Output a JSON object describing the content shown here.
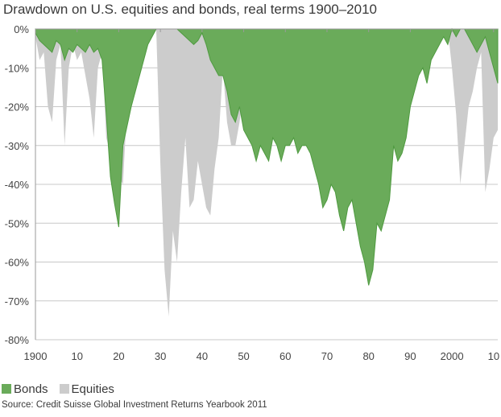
{
  "title": "Drawdown on U.S. equities and bonds, real terms 1900–2010",
  "source": "Source: Credit Suisse Global Investment Returns Yearbook 2011",
  "chart_data": {
    "type": "area",
    "title": "Drawdown on U.S. equities and bonds, real terms 1900–2010",
    "xlabel": "",
    "ylabel": "",
    "xlim": [
      1900,
      2011
    ],
    "ylim": [
      -80,
      0
    ],
    "x_ticks": [
      1900,
      1910,
      1920,
      1930,
      1940,
      1950,
      1960,
      1970,
      1980,
      1990,
      2000,
      2010
    ],
    "x_tick_labels": [
      "1900",
      "10",
      "20",
      "30",
      "40",
      "50",
      "60",
      "70",
      "80",
      "90",
      "2000",
      "10"
    ],
    "y_ticks": [
      0,
      -10,
      -20,
      -30,
      -40,
      -50,
      -60,
      -70,
      -80
    ],
    "y_tick_labels": [
      "0%",
      "-10%",
      "-20%",
      "-30%",
      "-40%",
      "-50%",
      "-60%",
      "-70%",
      "-80%"
    ],
    "grid": "horizontal",
    "legend": "bottom-left",
    "series": [
      {
        "name": "Equities",
        "color": "#cccccc",
        "x": [
          1900,
          1901,
          1902,
          1903,
          1904,
          1905,
          1906,
          1907,
          1908,
          1909,
          1910,
          1911,
          1912,
          1913,
          1914,
          1915,
          1916,
          1917,
          1918,
          1919,
          1920,
          1921,
          1922,
          1923,
          1924,
          1925,
          1926,
          1927,
          1928,
          1929,
          1930,
          1931,
          1932,
          1933,
          1934,
          1935,
          1936,
          1937,
          1938,
          1939,
          1940,
          1941,
          1942,
          1943,
          1944,
          1945,
          1946,
          1947,
          1948,
          1949,
          1950,
          1951,
          1952,
          1953,
          1954,
          1955,
          1956,
          1957,
          1958,
          1959,
          1960,
          1961,
          1962,
          1963,
          1964,
          1965,
          1966,
          1967,
          1968,
          1969,
          1970,
          1971,
          1972,
          1973,
          1974,
          1975,
          1976,
          1977,
          1978,
          1979,
          1980,
          1981,
          1982,
          1983,
          1984,
          1985,
          1986,
          1987,
          1988,
          1989,
          1990,
          1991,
          1992,
          1993,
          1994,
          1995,
          1996,
          1997,
          1998,
          1999,
          2000,
          2001,
          2002,
          2003,
          2004,
          2005,
          2006,
          2007,
          2008,
          2009,
          2010,
          2011
        ],
        "values": [
          -2,
          -8,
          -6,
          -20,
          -24,
          -8,
          -4,
          -30,
          -10,
          -4,
          -8,
          -6,
          -12,
          -18,
          -28,
          -10,
          -6,
          -28,
          -32,
          -22,
          -38,
          -40,
          -20,
          -16,
          -8,
          0,
          -4,
          0,
          0,
          0,
          -35,
          -62,
          -74,
          -52,
          -60,
          -42,
          -28,
          -46,
          -44,
          -34,
          -40,
          -46,
          -48,
          -36,
          -28,
          -10,
          -24,
          -30,
          -30,
          -24,
          -16,
          -8,
          -4,
          -8,
          0,
          0,
          -2,
          -10,
          0,
          0,
          -4,
          0,
          -14,
          -6,
          0,
          0,
          -14,
          -8,
          -4,
          -16,
          -24,
          -18,
          -12,
          -30,
          -44,
          -38,
          -32,
          -40,
          -42,
          -38,
          -34,
          -38,
          -32,
          -18,
          -20,
          -10,
          0,
          -10,
          -6,
          0,
          -8,
          0,
          0,
          0,
          -2,
          0,
          0,
          0,
          0,
          0,
          -10,
          -22,
          -40,
          -30,
          -20,
          -16,
          -10,
          -6,
          -42,
          -36,
          -28,
          -26
        ]
      },
      {
        "name": "Bonds",
        "color": "#6aab5a",
        "x": [
          1900,
          1901,
          1902,
          1903,
          1904,
          1905,
          1906,
          1907,
          1908,
          1909,
          1910,
          1911,
          1912,
          1913,
          1914,
          1915,
          1916,
          1917,
          1918,
          1919,
          1920,
          1921,
          1922,
          1923,
          1924,
          1925,
          1926,
          1927,
          1928,
          1929,
          1930,
          1931,
          1932,
          1933,
          1934,
          1935,
          1936,
          1937,
          1938,
          1939,
          1940,
          1941,
          1942,
          1943,
          1944,
          1945,
          1946,
          1947,
          1948,
          1949,
          1950,
          1951,
          1952,
          1953,
          1954,
          1955,
          1956,
          1957,
          1958,
          1959,
          1960,
          1961,
          1962,
          1963,
          1964,
          1965,
          1966,
          1967,
          1968,
          1969,
          1970,
          1971,
          1972,
          1973,
          1974,
          1975,
          1976,
          1977,
          1978,
          1979,
          1980,
          1981,
          1982,
          1983,
          1984,
          1985,
          1986,
          1987,
          1988,
          1989,
          1990,
          1991,
          1992,
          1993,
          1994,
          1995,
          1996,
          1997,
          1998,
          1999,
          2000,
          2001,
          2002,
          2003,
          2004,
          2005,
          2006,
          2007,
          2008,
          2009,
          2010,
          2011
        ],
        "values": [
          -1,
          -3,
          -4,
          -5,
          -6,
          -3,
          -4,
          -8,
          -5,
          -6,
          -4,
          -5,
          -6,
          -4,
          -6,
          -5,
          -8,
          -22,
          -38,
          -45,
          -51,
          -30,
          -25,
          -20,
          -16,
          -12,
          -8,
          -4,
          -2,
          0,
          0,
          0,
          0,
          0,
          0,
          -1,
          -2,
          -3,
          -4,
          -3,
          -1,
          -4,
          -8,
          -10,
          -12,
          -12,
          -16,
          -22,
          -24,
          -20,
          -26,
          -28,
          -30,
          -34,
          -30,
          -32,
          -34,
          -28,
          -30,
          -34,
          -30,
          -30,
          -28,
          -32,
          -30,
          -30,
          -32,
          -36,
          -40,
          -46,
          -44,
          -40,
          -42,
          -48,
          -52,
          -46,
          -44,
          -50,
          -56,
          -60,
          -66,
          -62,
          -50,
          -52,
          -48,
          -44,
          -30,
          -34,
          -32,
          -28,
          -20,
          -16,
          -12,
          -10,
          -14,
          -8,
          -6,
          -4,
          -2,
          -4,
          0,
          -2,
          0,
          0,
          -2,
          -4,
          -6,
          -4,
          -2,
          -6,
          -10,
          -14
        ]
      }
    ]
  },
  "legend": {
    "items": [
      {
        "label": "Bonds",
        "color": "#6aab5a"
      },
      {
        "label": "Equities",
        "color": "#cccccc"
      }
    ]
  }
}
